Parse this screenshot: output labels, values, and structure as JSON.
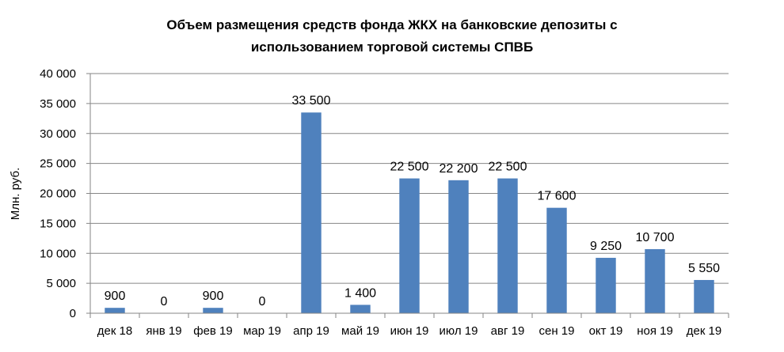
{
  "chart_data": {
    "type": "bar",
    "title_lines": [
      "Объем размещения средств фонда ЖКХ на банковские депозиты с",
      "использованием торговой  системы СПВБ"
    ],
    "ylabel": "Млн. руб.",
    "xlabel": "",
    "ylim": [
      0,
      40000
    ],
    "y_ticks": [
      0,
      5000,
      10000,
      15000,
      20000,
      25000,
      30000,
      35000,
      40000
    ],
    "y_tick_labels": [
      "0",
      "5 000",
      "10 000",
      "15 000",
      "20 000",
      "25 000",
      "30 000",
      "35 000",
      "40 000"
    ],
    "grid": true,
    "legend": "none",
    "bar_color": "#4F81BD",
    "categories": [
      "дек 18",
      "янв 19",
      "фев 19",
      "мар 19",
      "апр 19",
      "май 19",
      "июн 19",
      "июл 19",
      "авг 19",
      "сен 19",
      "окт 19",
      "ноя 19",
      "дек 19"
    ],
    "values": [
      900,
      0,
      900,
      0,
      33500,
      1400,
      22500,
      22200,
      22500,
      17600,
      9250,
      10700,
      5550
    ],
    "data_labels": [
      "900",
      "0",
      "900",
      "0",
      "33 500",
      "1 400",
      "22 500",
      "22 200",
      "22 500",
      "17 600",
      "9 250",
      "10 700",
      "5 550"
    ]
  }
}
